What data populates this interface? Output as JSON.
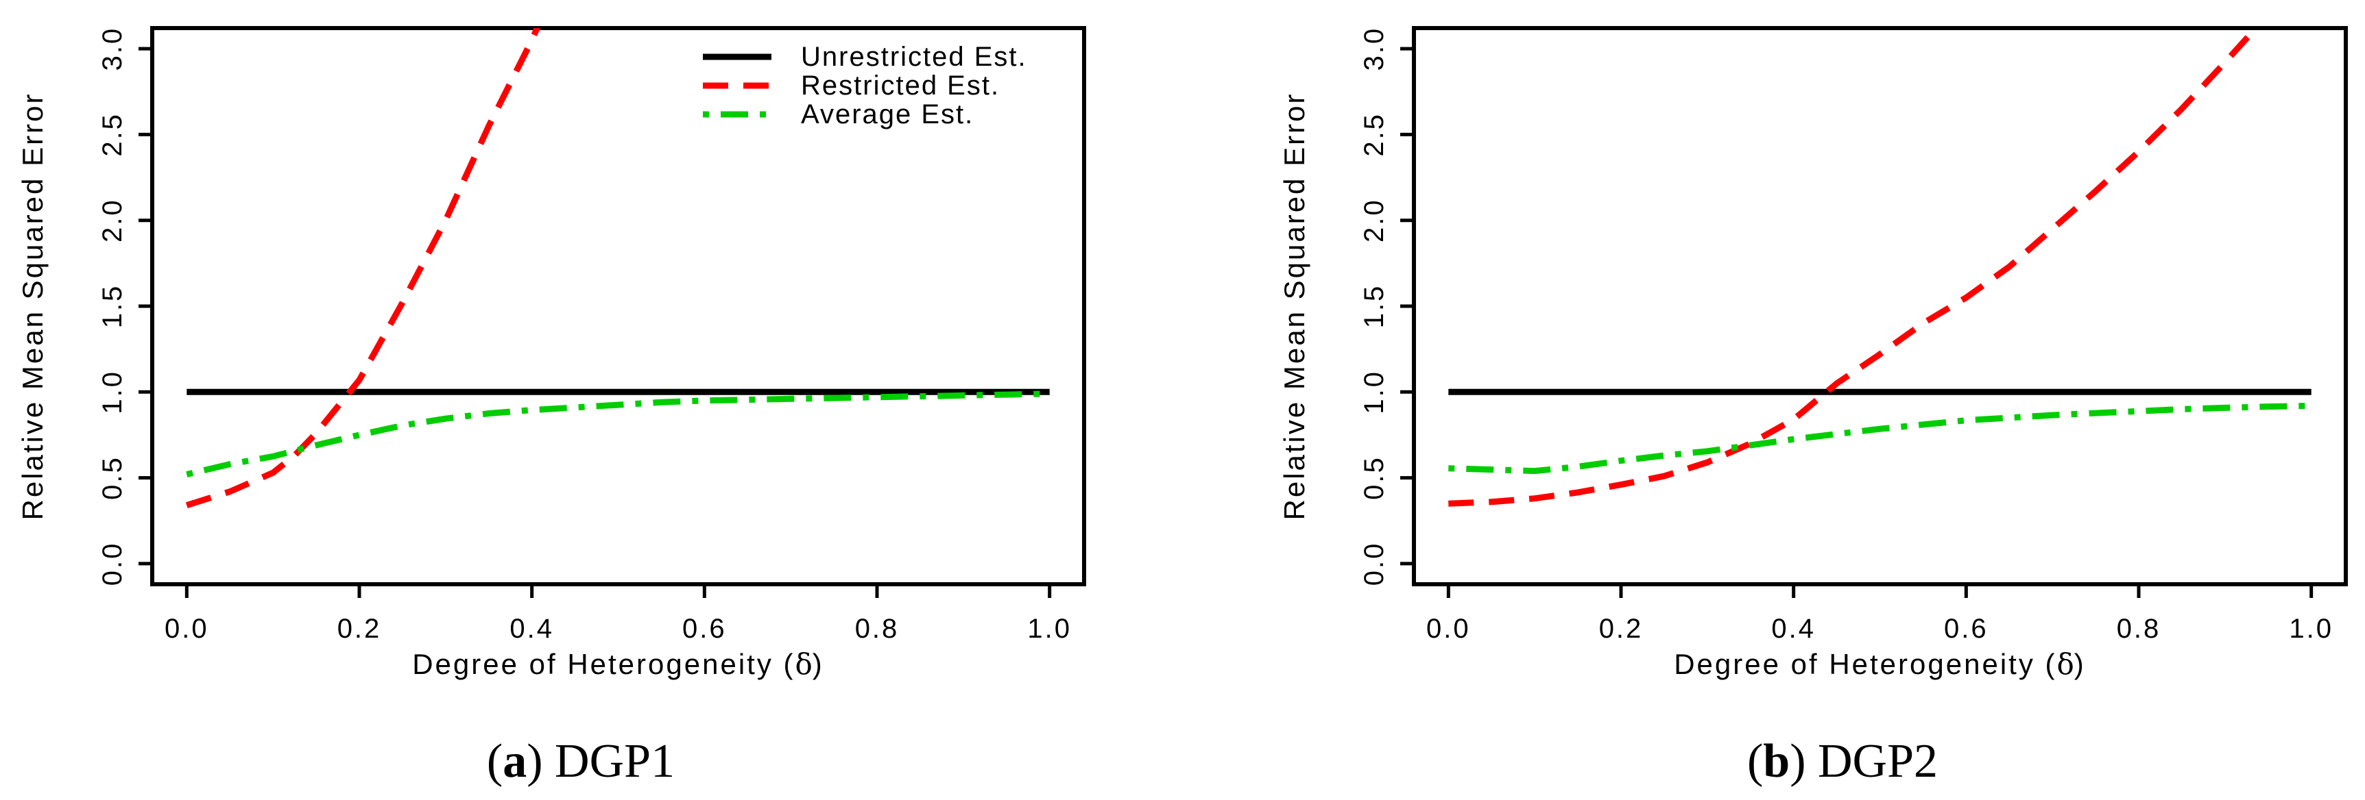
{
  "page": {
    "background": "#FFFFFF",
    "text_color": "#000000"
  },
  "figure": {
    "panels": [
      {
        "id": "dgp1",
        "caption": {
          "open": "(",
          "letter": "a",
          "close": ")",
          "label": "DGP1"
        }
      },
      {
        "id": "dgp2",
        "caption": {
          "open": "(",
          "letter": "b",
          "close": ")",
          "label": "DGP2"
        }
      }
    ]
  },
  "chart_data": [
    {
      "type": "line",
      "title": "(a) DGP1",
      "xlabel": "Degree of Heterogeneity (δ)",
      "ylabel": "Relative Mean Squared Error",
      "xlim": [
        0,
        1
      ],
      "ylim": [
        0,
        3
      ],
      "axis_expansion": 0.04,
      "grid": false,
      "xticks": [
        "0.0",
        "0.2",
        "0.4",
        "0.6",
        "0.8",
        "1.0"
      ],
      "yticks": [
        "0.0",
        "0.5",
        "1.0",
        "1.5",
        "2.0",
        "2.5",
        "3.0"
      ],
      "legend": {
        "position": "topright",
        "entries": [
          {
            "label": "Unrestricted Est.",
            "series": 0
          },
          {
            "label": "Restricted Est.",
            "series": 1
          },
          {
            "label": "Average Est.",
            "series": 2
          }
        ]
      },
      "series": [
        {
          "name": "Unrestricted Est.",
          "color": "#000000",
          "style": "solid",
          "points": [
            [
              0,
              1.0
            ],
            [
              1,
              1.0
            ]
          ]
        },
        {
          "name": "Restricted Est.",
          "color": "#FF0000",
          "style": "dashed",
          "points": [
            [
              0,
              0.34
            ],
            [
              0.05,
              0.42
            ],
            [
              0.1,
              0.53
            ],
            [
              0.125,
              0.63
            ],
            [
              0.15,
              0.76
            ],
            [
              0.2,
              1.07
            ],
            [
              0.25,
              1.52
            ],
            [
              0.3,
              2.0
            ],
            [
              0.35,
              2.55
            ],
            [
              0.4,
              3.05
            ],
            [
              0.43,
              3.4
            ]
          ]
        },
        {
          "name": "Average Est.",
          "color": "#00CD00",
          "style": "dashdot",
          "points": [
            [
              0,
              0.52
            ],
            [
              0.05,
              0.58
            ],
            [
              0.1,
              0.625
            ],
            [
              0.15,
              0.69
            ],
            [
              0.2,
              0.75
            ],
            [
              0.25,
              0.805
            ],
            [
              0.3,
              0.845
            ],
            [
              0.35,
              0.875
            ],
            [
              0.4,
              0.895
            ],
            [
              0.45,
              0.91
            ],
            [
              0.5,
              0.925
            ],
            [
              0.55,
              0.94
            ],
            [
              0.6,
              0.95
            ],
            [
              0.65,
              0.955
            ],
            [
              0.7,
              0.96
            ],
            [
              0.75,
              0.965
            ],
            [
              0.8,
              0.97
            ],
            [
              0.85,
              0.975
            ],
            [
              0.9,
              0.98
            ],
            [
              0.95,
              0.985
            ],
            [
              1.0,
              0.99
            ]
          ]
        }
      ]
    },
    {
      "type": "line",
      "title": "(b) DGP2",
      "xlabel": "Degree of Heterogeneity (δ)",
      "ylabel": "Relative Mean Squared Error",
      "xlim": [
        0,
        1
      ],
      "ylim": [
        0,
        3
      ],
      "axis_expansion": 0.04,
      "grid": false,
      "xticks": [
        "0.0",
        "0.2",
        "0.4",
        "0.6",
        "0.8",
        "1.0"
      ],
      "yticks": [
        "0.0",
        "0.5",
        "1.0",
        "1.5",
        "2.0",
        "2.5",
        "3.0"
      ],
      "legend": {
        "position": "none",
        "entries": []
      },
      "series": [
        {
          "name": "Unrestricted Est.",
          "color": "#000000",
          "style": "solid",
          "points": [
            [
              0,
              1.0
            ],
            [
              1,
              1.0
            ]
          ]
        },
        {
          "name": "Restricted Est.",
          "color": "#FF0000",
          "style": "dashed",
          "points": [
            [
              0,
              0.35
            ],
            [
              0.05,
              0.36
            ],
            [
              0.1,
              0.38
            ],
            [
              0.15,
              0.415
            ],
            [
              0.2,
              0.46
            ],
            [
              0.25,
              0.51
            ],
            [
              0.3,
              0.59
            ],
            [
              0.35,
              0.7
            ],
            [
              0.4,
              0.84
            ],
            [
              0.45,
              1.05
            ],
            [
              0.5,
              1.22
            ],
            [
              0.55,
              1.4
            ],
            [
              0.6,
              1.55
            ],
            [
              0.65,
              1.73
            ],
            [
              0.7,
              1.95
            ],
            [
              0.75,
              2.17
            ],
            [
              0.8,
              2.4
            ],
            [
              0.85,
              2.65
            ],
            [
              0.9,
              2.92
            ],
            [
              0.95,
              3.2
            ]
          ]
        },
        {
          "name": "Average Est.",
          "color": "#00CD00",
          "style": "dashdot",
          "points": [
            [
              0,
              0.555
            ],
            [
              0.05,
              0.548
            ],
            [
              0.1,
              0.54
            ],
            [
              0.15,
              0.565
            ],
            [
              0.2,
              0.6
            ],
            [
              0.25,
              0.63
            ],
            [
              0.3,
              0.655
            ],
            [
              0.35,
              0.69
            ],
            [
              0.4,
              0.725
            ],
            [
              0.45,
              0.755
            ],
            [
              0.5,
              0.785
            ],
            [
              0.55,
              0.81
            ],
            [
              0.6,
              0.835
            ],
            [
              0.65,
              0.85
            ],
            [
              0.7,
              0.865
            ],
            [
              0.75,
              0.877
            ],
            [
              0.8,
              0.888
            ],
            [
              0.85,
              0.9
            ],
            [
              0.9,
              0.908
            ],
            [
              0.95,
              0.915
            ],
            [
              1.0,
              0.92
            ]
          ]
        }
      ]
    }
  ]
}
